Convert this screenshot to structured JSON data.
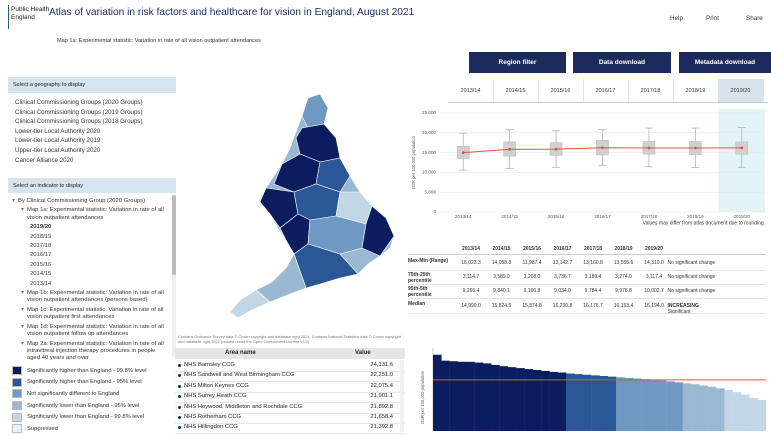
{
  "header": {
    "logo": [
      "Public Health",
      "England"
    ],
    "title": "Atlas of variation in risk factors and healthcare for vision in England, August 2021",
    "links": [
      "Help",
      "Print",
      "Share"
    ]
  },
  "subtitle": "Map 1a: Experimental statistic: Variation in rate of all vision outpatient attendances",
  "buttons": [
    "Region filter",
    "Data download",
    "Metadata download"
  ],
  "year_tabs": [
    "2013/14",
    "2014/15",
    "2015/16",
    "2016/17",
    "2017/18",
    "2018/19",
    "2019/20"
  ],
  "selected_tab": 6,
  "geography_panel": {
    "heading": "Select a geography to display",
    "options": [
      "Clinical Commissioning Groups (2020 Groups)",
      "Clinical Commissioning Groups (2019 Groups)",
      "Clinical Commissioning Groups (2018 Groups)",
      "Lower-tier Local Authority 2020",
      "Lower-tier Local Authority 2019",
      "Upper-tier Local Authority 2020",
      "Cancer Alliance 2020"
    ]
  },
  "indicator_panel": {
    "heading": "Select an indicator to display",
    "tree": [
      {
        "label": "By Clinical Commissioning Group (2020 Groups)",
        "level": 0
      },
      {
        "label": "Map 1a: Experimental statistic: Variation in rate of all vision outpatient attendances",
        "level": 1
      },
      {
        "label": "2019/20",
        "level": 2,
        "selected": true
      },
      {
        "label": "2018/19",
        "level": 2
      },
      {
        "label": "2017/18",
        "level": 2
      },
      {
        "label": "2016/17",
        "level": 2
      },
      {
        "label": "2015/16",
        "level": 2
      },
      {
        "label": "2014/15",
        "level": 2
      },
      {
        "label": "2013/14",
        "level": 2
      },
      {
        "label": "Map 1b: Experimental statistic: Variation in rate of all vision outpatient attendances (persons based)",
        "level": 1
      },
      {
        "label": "Map 1c: Experimental statistic: Variation in rate of all vision outpatient first attendances",
        "level": 1
      },
      {
        "label": "Map 1d: Experimental statistic: Variation in rate of all vision outpatient follow up attendances",
        "level": 1
      },
      {
        "label": "Map 2a: Experimental statistic: Variation in rate of all intravitreal injection therapy procedures in people aged 40 years and over",
        "level": 1
      }
    ]
  },
  "legend": [
    {
      "label": "Significantly higher than England - 99.8% level",
      "color": "#0b1d5e"
    },
    {
      "label": "Significantly higher than England - 95% level",
      "color": "#2b5797"
    },
    {
      "label": "Not significantly different to England",
      "color": "#6f98c2"
    },
    {
      "label": "Significantly lower than England - 95% level",
      "color": "#9bb8d3"
    },
    {
      "label": "Significantly lower than England - 99.8% level",
      "color": "#c3d6e6"
    },
    {
      "label": "Suppressed",
      "color": "#eef2f6"
    }
  ],
  "map_copyright": "Contains Ordnance Survey data © Crown copyright and database right 2021. Contains National Statistics data © Crown copyright and database right 2021 (reused under the Open Government Licence v3.0)",
  "chart_data": [
    {
      "type": "box",
      "ylabel": "DSR per 100,000 population",
      "categories": [
        "2013/14",
        "2014/15",
        "2015/16",
        "2016/17",
        "2017/18",
        "2018/19",
        "2019/20"
      ],
      "median": [
        14990,
        15824.5,
        15874.8,
        16230.8,
        16176.7,
        16153.4,
        16194
      ],
      "q1": [
        13500,
        14100,
        14300,
        14400,
        14600,
        14500,
        14600
      ],
      "q3": [
        16600,
        17700,
        17500,
        18100,
        17800,
        17800,
        17700
      ],
      "p5": [
        10600,
        11000,
        11300,
        11800,
        11400,
        11200,
        11300
      ],
      "p95": [
        19900,
        20800,
        20500,
        20800,
        21200,
        21200,
        21300
      ],
      "median_color": "#d9553f",
      "box_color": "#d0d0d0",
      "highlight": 6,
      "ylim": [
        0,
        25000
      ],
      "yticks": [
        0,
        {
          "value": 5000,
          "label": "5,000"
        },
        {
          "value": 10000,
          "label": "10,000"
        },
        {
          "value": 15000,
          "label": "15,000"
        },
        {
          "value": 20000,
          "label": "20,000"
        },
        {
          "value": 25000,
          "label": "25,000"
        }
      ],
      "grid": true,
      "note": "Values may differ from atlas document due to rounding."
    },
    {
      "type": "bar",
      "ylabel": "DSR per 100,000 population",
      "values": [
        24131.6,
        22251.0,
        22075.4,
        21901.1,
        21892.8,
        21658.4,
        21392.8,
        20900,
        20500,
        20200,
        19900,
        19600,
        19300,
        19000,
        18700,
        18500,
        18200,
        18000,
        17800,
        17600,
        17400,
        17200,
        17000,
        16800,
        16600,
        16400,
        16200,
        16000,
        15700,
        15400,
        15100,
        14800,
        14400,
        14000,
        13500,
        13000,
        12300,
        11500,
        10500,
        9800
      ],
      "colors": [
        "#0b1d5e",
        "#0b1d5e",
        "#0b1d5e",
        "#0b1d5e",
        "#0b1d5e",
        "#0b1d5e",
        "#0b1d5e",
        "#0b1d5e",
        "#0b1d5e",
        "#0b1d5e",
        "#0b1d5e",
        "#0b1d5e",
        "#0b1d5e",
        "#0b1d5e",
        "#0b1d5e",
        "#0b1d5e",
        "#2b5797",
        "#2b5797",
        "#2b5797",
        "#2b5797",
        "#2b5797",
        "#2b5797",
        "#6f98c2",
        "#6f98c2",
        "#6f98c2",
        "#6f98c2",
        "#6f98c2",
        "#6f98c2",
        "#6f98c2",
        "#6f98c2",
        "#9bb8d3",
        "#9bb8d3",
        "#9bb8d3",
        "#9bb8d3",
        "#9bb8d3",
        "#c3d6e6",
        "#c3d6e6",
        "#c3d6e6",
        "#c3d6e6",
        "#c3d6e6"
      ],
      "reference": 16194,
      "reference_color": "#d9553f",
      "ylim": [
        0,
        25000
      ]
    }
  ],
  "stats_table": {
    "columns": [
      "2013/14",
      "2014/15",
      "2015/16",
      "2016/17",
      "2017/18",
      "2018/19",
      "2019/20"
    ],
    "rows": [
      {
        "label": "Max-Min (Range)",
        "values": [
          "16,023.3",
          "14,058.3",
          "11,987.4",
          "13,142.7",
          "13,160.8",
          "13,555.6",
          "14,310.0"
        ],
        "trend": "No significant change"
      },
      {
        "label": "75th-25th percentile",
        "values": [
          "3,114.7",
          "3,589.0",
          "3,208.0",
          "3,736.7",
          "3,189.4",
          "3,274.0",
          "3,117.4"
        ],
        "trend": "No significant change"
      },
      {
        "label": "95th-5th percentile",
        "values": [
          "9,266.4",
          "9,840.1",
          "9,166.8",
          "9,034.0",
          "9,784.4",
          "9,976.8",
          "10,002.7"
        ],
        "trend": "No significant change"
      },
      {
        "label": "Median",
        "values": [
          "14,990.0",
          "15,824.5",
          "15,874.8",
          "16,230.8",
          "16,176.7",
          "16,153.4",
          "16,194.0"
        ],
        "trend": "INCREASING",
        "trend_note": "Significant"
      }
    ]
  },
  "area_table": {
    "columns": [
      "Area name",
      "Value"
    ],
    "rows": [
      [
        "NHS Barnsley CCG",
        "24,131.6"
      ],
      [
        "NHS Sandwell and West Birmingham CCG",
        "22,251.0"
      ],
      [
        "NHS Milton Keynes CCG",
        "22,075.4"
      ],
      [
        "NHS Surrey Heath CCG",
        "21,901.1"
      ],
      [
        "NHS Heywood, Middleton and Rochdale CCG",
        "21,892.8"
      ],
      [
        "NHS Rotherham CCG",
        "21,658.4"
      ],
      [
        "NHS Hillingdon CCG",
        "21,392.8"
      ]
    ]
  }
}
